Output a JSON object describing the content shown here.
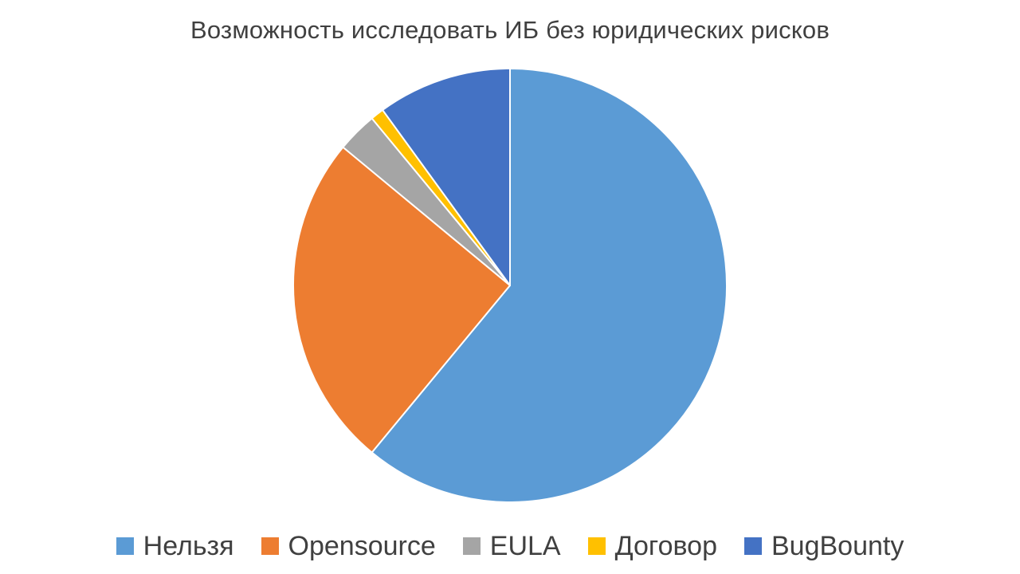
{
  "title": "Возможность исследовать ИБ без юридических рисков",
  "chart_data": {
    "type": "pie",
    "title": "Возможность исследовать ИБ без юридических рисков",
    "labels": [
      "Нельзя",
      "Opensource",
      "EULA",
      "Договор",
      "BugBounty"
    ],
    "values": [
      61,
      25,
      3,
      1,
      10
    ],
    "colors": [
      "#5B9BD5",
      "#ED7D31",
      "#A5A5A5",
      "#FFC000",
      "#4472C4"
    ],
    "start_angle_deg": 0,
    "direction": "clockwise",
    "legend_position": "bottom",
    "title_color": "#404040",
    "legend_text_color": "#404040",
    "background": "#FFFFFF"
  }
}
